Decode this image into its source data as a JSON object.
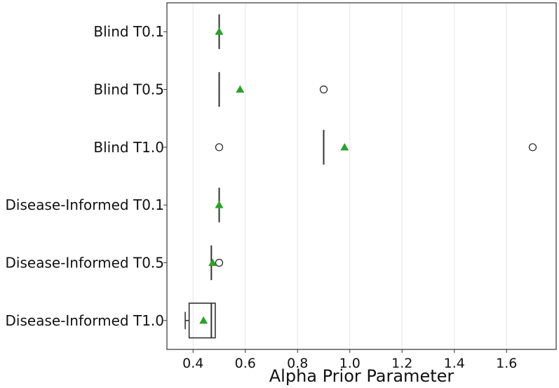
{
  "chart_data": {
    "type": "boxplot",
    "orientation": "horizontal",
    "title": "",
    "xlabel": "Alpha Prior Parameter",
    "ylabel": "",
    "xlim": [
      0.3,
      1.79
    ],
    "xticks": [
      0.4,
      0.6,
      0.8,
      1.0,
      1.2,
      1.4,
      1.6
    ],
    "xtick_labels": [
      "0.4",
      "0.6",
      "0.8",
      "1.0",
      "1.2",
      "1.4",
      "1.6"
    ],
    "grid": "vertical",
    "categories": [
      "Blind T0.1",
      "Blind T0.5",
      "Blind T1.0",
      "Disease-Informed T0.1",
      "Disease-Informed T0.5",
      "Disease-Informed T1.0"
    ],
    "boxes": [
      {
        "whislo": 0.5,
        "q1": 0.5,
        "med": 0.5,
        "q3": 0.5,
        "whishi": 0.5,
        "mean": 0.5,
        "fliers": []
      },
      {
        "whislo": 0.5,
        "q1": 0.5,
        "med": 0.5,
        "q3": 0.5,
        "whishi": 0.5,
        "mean": 0.58,
        "fliers": [
          0.9
        ]
      },
      {
        "whislo": 0.9,
        "q1": 0.9,
        "med": 0.9,
        "q3": 0.9,
        "whishi": 0.9,
        "mean": 0.98,
        "fliers": [
          0.5,
          1.7
        ]
      },
      {
        "whislo": 0.5,
        "q1": 0.5,
        "med": 0.5,
        "q3": 0.5,
        "whishi": 0.5,
        "mean": 0.5,
        "fliers": []
      },
      {
        "whislo": 0.47,
        "q1": 0.47,
        "med": 0.47,
        "q3": 0.47,
        "whishi": 0.47,
        "mean": 0.475,
        "fliers": [
          0.5
        ]
      },
      {
        "whislo": 0.37,
        "q1": 0.385,
        "med": 0.47,
        "q3": 0.485,
        "whishi": 0.485,
        "mean": 0.44,
        "fliers": []
      }
    ],
    "colors": {
      "box": "#333333",
      "mean_marker": "#2ca02c",
      "grid": "#e6e6e6",
      "frame": "#333333"
    }
  }
}
